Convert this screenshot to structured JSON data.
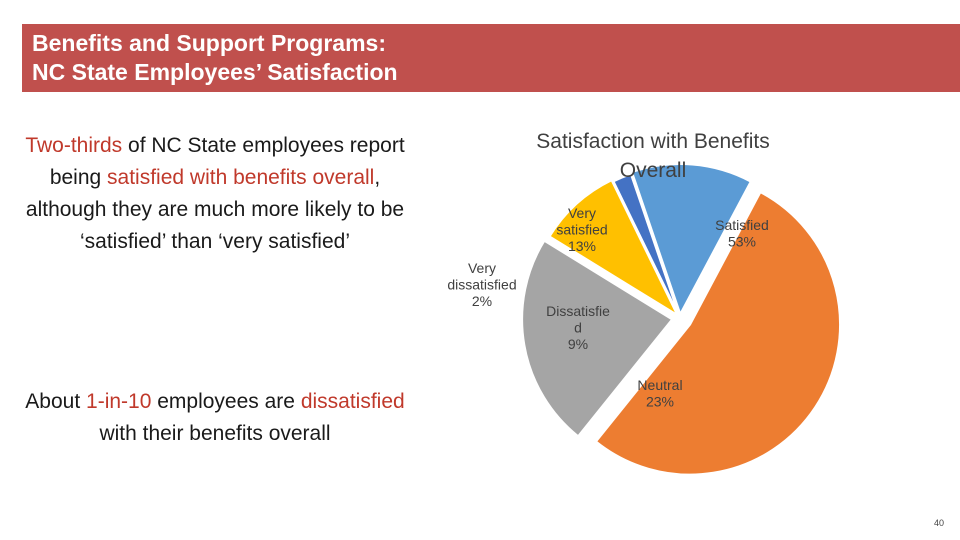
{
  "header": {
    "title": "Benefits and Support Programs:\nNC State Employees’ Satisfaction"
  },
  "body": {
    "para1": {
      "hl1": "Two-thirds",
      "t1": " of NC State employees report being ",
      "hl2": "satisfied with benefits overall",
      "t2": ", although they are much more likely to be ‘satisfied’ than ‘very satisfied’"
    },
    "para2": {
      "t1": "About ",
      "hl1": "1-in-10",
      "t2": " employees are ",
      "hl2": "dissatisfied",
      "t3": "with their benefits overall"
    }
  },
  "colors": {
    "accent": "#c0504d",
    "highlight": "#c0392b"
  },
  "chart_data": {
    "type": "pie",
    "title": "Satisfaction with Benefits Overall",
    "slices": [
      {
        "label": "Satisfied",
        "value": 53,
        "pct_label": "53%",
        "color": "#ed7d31"
      },
      {
        "label": "Neutral",
        "value": 23,
        "pct_label": "23%",
        "color": "#a5a5a5"
      },
      {
        "label": "Dissatisfied",
        "value": 9,
        "pct_label": "9%",
        "color": "#ffc000"
      },
      {
        "label": "Very dissatisfied",
        "value": 2,
        "pct_label": "2%",
        "color": "#4472c4"
      },
      {
        "label": "Very satisfied",
        "value": 13,
        "pct_label": "13%",
        "color": "#5b9bd5"
      }
    ]
  },
  "page_number": "40"
}
